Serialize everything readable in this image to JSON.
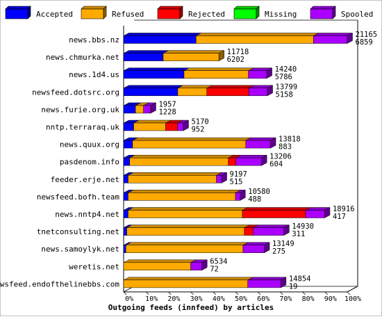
{
  "chart_data": {
    "type": "bar",
    "orientation": "horizontal",
    "stacked": true,
    "percent_scale": true,
    "title": "Outgoing feeds (innfeed) by articles",
    "xlabel": "Outgoing feeds (innfeed) by articles",
    "xlim": [
      0,
      100
    ],
    "x_ticks": [
      "0%",
      "10%",
      "20%",
      "30%",
      "40%",
      "50%",
      "60%",
      "70%",
      "80%",
      "90%",
      "100%"
    ],
    "legend_position": "top",
    "grid": false,
    "series": [
      {
        "name": "Accepted",
        "color": "#0000ff"
      },
      {
        "name": "Refused",
        "color": "#ffaa00"
      },
      {
        "name": "Rejected",
        "color": "#ff0000"
      },
      {
        "name": "Missing",
        "color": "#00ff00"
      },
      {
        "name": "Spooled",
        "color": "#aa00ff"
      }
    ],
    "categories": [
      {
        "label": "news.bbs.nz",
        "total": "21165",
        "secondary": "6859",
        "segments": [
          32.4,
          52.5,
          0,
          0,
          15.1
        ]
      },
      {
        "label": "news.chmurka.net",
        "total": "11718",
        "secondary": "6202",
        "segments": [
          17.7,
          24.9,
          0,
          0,
          0
        ]
      },
      {
        "label": "news.1d4.us",
        "total": "14240",
        "secondary": "5786",
        "segments": [
          27.0,
          28.8,
          0,
          0,
          8.2
        ]
      },
      {
        "label": "newsfeed.dotsrc.org",
        "total": "13799",
        "secondary": "5158",
        "segments": [
          24.2,
          13.0,
          18.8,
          0,
          8.3
        ]
      },
      {
        "label": "news.furie.org.uk",
        "total": "1957",
        "secondary": "1228",
        "segments": [
          5.3,
          3.6,
          0,
          0,
          3.2
        ]
      },
      {
        "label": "nntp.terraraq.uk",
        "total": "5170",
        "secondary": "952",
        "segments": [
          4.5,
          14.3,
          5.3,
          0,
          2.6
        ]
      },
      {
        "label": "news.quux.org",
        "total": "13818",
        "secondary": "883",
        "segments": [
          4.0,
          50.6,
          0,
          0,
          11.1
        ]
      },
      {
        "label": "pasdenom.info",
        "total": "13206",
        "secondary": "604",
        "segments": [
          2.7,
          44.1,
          3.4,
          0,
          11.5
        ]
      },
      {
        "label": "feeder.erje.net",
        "total": "9197",
        "secondary": "515",
        "segments": [
          2.0,
          39.5,
          0,
          0,
          2.3
        ]
      },
      {
        "label": "newsfeed.bofh.team",
        "total": "10580",
        "secondary": "488",
        "segments": [
          2.0,
          48.0,
          0,
          0,
          2.1
        ]
      },
      {
        "label": "news.nntp4.net",
        "total": "18916",
        "secondary": "417",
        "segments": [
          2.0,
          51.1,
          28.3,
          0,
          8.5
        ]
      },
      {
        "label": "tnetconsulting.net",
        "total": "14930",
        "secondary": "311",
        "segments": [
          1.4,
          52.6,
          3.9,
          0,
          13.8
        ]
      },
      {
        "label": "news.samoylyk.net",
        "total": "13149",
        "secondary": "275",
        "segments": [
          1.0,
          52.4,
          0,
          0,
          9.5
        ]
      },
      {
        "label": "weretis.net",
        "total": "6534",
        "secondary": "72",
        "segments": [
          0,
          30.0,
          0,
          0,
          5.0
        ]
      },
      {
        "label": "newsfeed.endofthelinebbs.com",
        "total": "14854",
        "secondary": "19",
        "segments": [
          0,
          55.5,
          0,
          0,
          14.8
        ]
      }
    ]
  }
}
